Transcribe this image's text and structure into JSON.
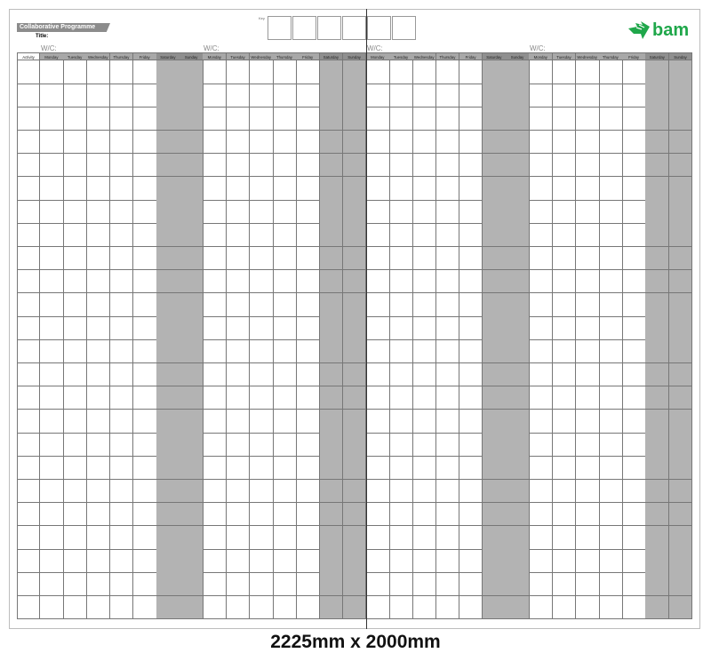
{
  "header": {
    "programme_label": "Collaborative Programme",
    "title_label": "Title:",
    "key_label": "Key",
    "logo_text": "bam",
    "brand_color": "#1fa74a"
  },
  "weeks": [
    {
      "label": "W/C:"
    },
    {
      "label": "W/C:"
    },
    {
      "label": "W/C:"
    },
    {
      "label": "W/C:"
    }
  ],
  "grid": {
    "activity_header": "Activity",
    "days": [
      "Monday",
      "Tuesday",
      "Wednesday",
      "Thursday",
      "Friday",
      "Saturday",
      "Sunday"
    ],
    "weekend_color": "#b3b3b3"
  },
  "caption": "2225mm x 2000mm"
}
